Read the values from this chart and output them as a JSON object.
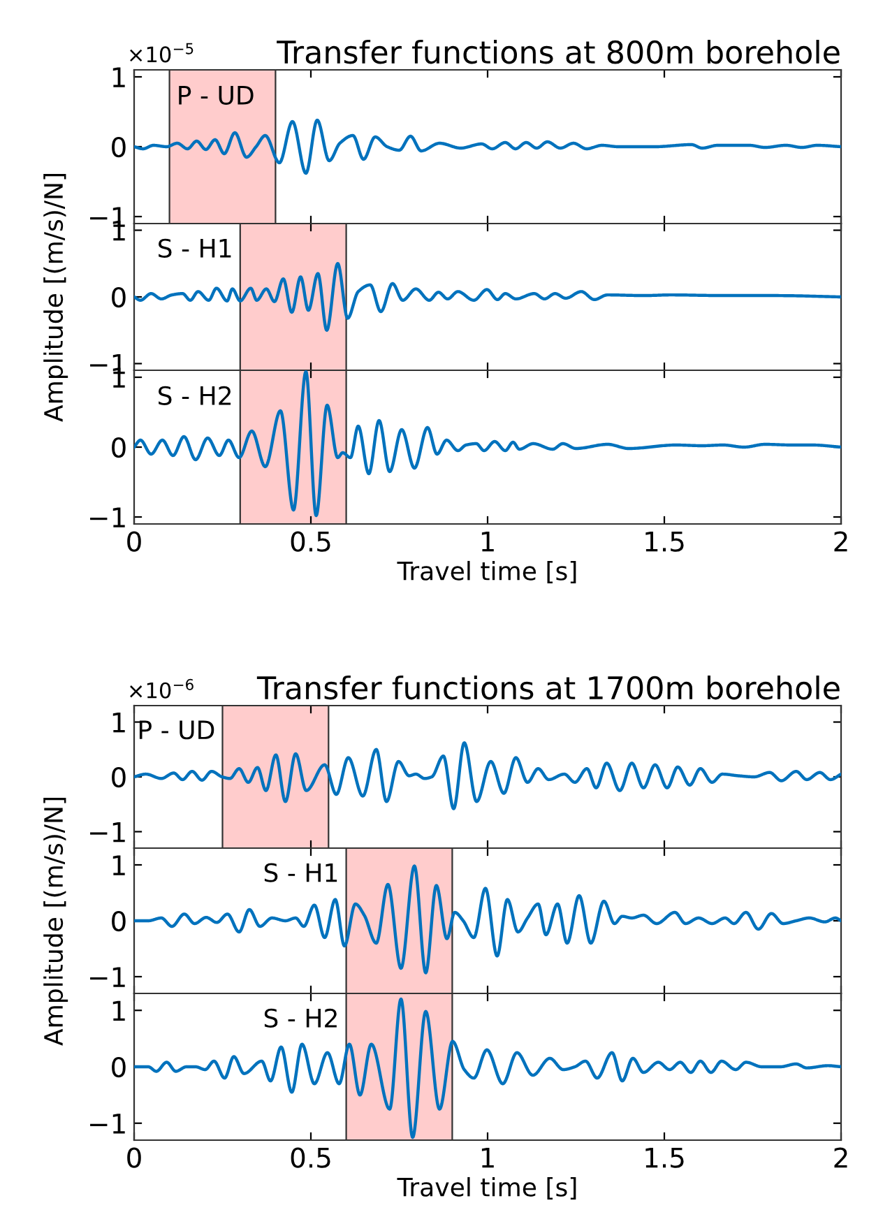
{
  "chart_data": [
    {
      "type": "line",
      "title": "Transfer functions at 800m borehole",
      "annotations": [
        "×10$^{−5}$"
      ],
      "x": [
        0,
        0.025,
        0.055,
        0.092,
        0.122,
        0.151,
        0.177,
        0.203,
        0.229,
        0.255,
        0.285,
        0.318,
        0.345,
        0.371,
        0.411,
        0.448,
        0.486,
        0.518,
        0.552,
        0.582,
        0.619,
        0.649,
        0.682,
        0.716,
        0.75,
        0.782,
        0.812,
        0.864,
        0.924,
        0.983,
        1.013,
        1.05,
        1.079,
        1.109,
        1.139,
        1.169,
        1.206,
        1.243,
        1.28,
        1.324,
        1.369,
        1.473,
        1.577,
        1.607,
        1.651,
        1.74,
        1.785,
        1.844,
        1.889,
        1.933,
        2.0
      ],
      "series": [
        {
          "color": "#0072bd",
          "values": [
            0,
            -0.03,
            0.02,
            0,
            0.05,
            -0.03,
            0.08,
            -0.04,
            0.1,
            -0.1,
            0.2,
            -0.15,
            0,
            0.16,
            -0.23,
            0.36,
            -0.38,
            0.38,
            -0.2,
            0.05,
            0.16,
            -0.18,
            0.14,
            0,
            -0.05,
            0.15,
            -0.06,
            0.05,
            -0.02,
            0.04,
            -0.03,
            0.06,
            -0.03,
            0.06,
            -0.02,
            0.07,
            -0.02,
            0.05,
            -0.03,
            0.02,
            0,
            0,
            0.03,
            -0.02,
            0.02,
            0.02,
            -0.01,
            0.02,
            -0.01,
            0.02,
            0
          ]
        }
      ],
      "xlim": [
        0,
        2
      ],
      "xticks": [
        0,
        0.5,
        1,
        1.5,
        2
      ],
      "ylim": [
        -1.1,
        1.1
      ],
      "yticks": [
        -1,
        0,
        1
      ],
      "tick_labels": "y",
      "grid": false,
      "legend": false,
      "bands": [
        {
          "axis": "x",
          "from": 0.1,
          "to": 0.4,
          "label": "P - UD",
          "color": "#ffcccc"
        }
      ]
    },
    {
      "type": "line",
      "ylabel": "Amplitude [(m/s)/N]",
      "x": [
        0,
        0.018,
        0.048,
        0.077,
        0.107,
        0.137,
        0.159,
        0.181,
        0.211,
        0.233,
        0.263,
        0.278,
        0.3,
        0.33,
        0.347,
        0.374,
        0.397,
        0.422,
        0.446,
        0.471,
        0.493,
        0.52,
        0.545,
        0.576,
        0.604,
        0.634,
        0.668,
        0.698,
        0.731,
        0.76,
        0.797,
        0.835,
        0.861,
        0.887,
        0.916,
        0.961,
        0.998,
        1.028,
        1.05,
        1.08,
        1.132,
        1.161,
        1.191,
        1.221,
        1.265,
        1.302,
        1.339,
        1.443,
        1.518,
        1.666,
        1.815,
        2.0
      ],
      "series": [
        {
          "color": "#0072bd",
          "values": [
            0,
            -0.05,
            0.05,
            -0.03,
            0.03,
            0.05,
            -0.05,
            0.08,
            -0.05,
            0.13,
            -0.06,
            0.12,
            -0.06,
            0.13,
            -0.05,
            0.12,
            -0.07,
            0.27,
            -0.23,
            0.3,
            -0.2,
            0.35,
            -0.5,
            0.5,
            -0.32,
            0.08,
            0.18,
            -0.22,
            0.2,
            -0.05,
            0.12,
            -0.05,
            0.07,
            -0.03,
            0.08,
            -0.05,
            0.11,
            -0.04,
            0.05,
            -0.03,
            0.05,
            -0.03,
            0.05,
            -0.02,
            0.08,
            -0.04,
            0.03,
            0.02,
            0.03,
            0.02,
            0.02,
            0
          ]
        }
      ],
      "xlim": [
        0,
        2
      ],
      "xticks": [
        0,
        0.5,
        1,
        1.5,
        2
      ],
      "ylim": [
        -1.1,
        1.1
      ],
      "yticks": [
        -1,
        0,
        1
      ],
      "tick_labels": "y",
      "grid": false,
      "legend": false,
      "bands": [
        {
          "axis": "x",
          "from": 0.3,
          "to": 0.6,
          "label": "S - H1",
          "color": "#ffcccc"
        }
      ]
    },
    {
      "type": "line",
      "xlabel": "Travel time [s]",
      "x": [
        0,
        0.018,
        0.048,
        0.08,
        0.11,
        0.141,
        0.174,
        0.208,
        0.241,
        0.267,
        0.297,
        0.333,
        0.371,
        0.414,
        0.451,
        0.486,
        0.515,
        0.546,
        0.576,
        0.59,
        0.612,
        0.634,
        0.664,
        0.693,
        0.723,
        0.757,
        0.793,
        0.83,
        0.857,
        0.884,
        0.916,
        0.939,
        0.968,
        0.99,
        1.02,
        1.05,
        1.072,
        1.09,
        1.129,
        1.184,
        1.213,
        1.25,
        1.34,
        1.399,
        1.533,
        1.607,
        1.666,
        1.726,
        1.785,
        1.859,
        1.919,
        2.0
      ],
      "series": [
        {
          "color": "#0072bd",
          "values": [
            0,
            0.1,
            -0.1,
            0.1,
            -0.12,
            0.15,
            -0.18,
            0.13,
            -0.12,
            0.1,
            -0.15,
            0.23,
            -0.28,
            0.52,
            -0.9,
            1.08,
            -0.98,
            0.6,
            -0.15,
            -0.08,
            -0.15,
            0.3,
            -0.38,
            0.38,
            -0.35,
            0.25,
            -0.3,
            0.28,
            -0.1,
            0.1,
            -0.05,
            0.03,
            0.05,
            -0.05,
            0.08,
            -0.05,
            0.07,
            -0.03,
            0.05,
            -0.03,
            0.05,
            -0.02,
            0.04,
            -0.02,
            0.03,
            0.02,
            0.03,
            0,
            0.04,
            0.03,
            0.03,
            0
          ]
        }
      ],
      "xlim": [
        0,
        2
      ],
      "xticks": [
        0,
        0.5,
        1,
        1.5,
        2
      ],
      "ylim": [
        -1.1,
        1.1
      ],
      "yticks": [
        -1,
        0,
        1
      ],
      "grid": false,
      "legend": false,
      "bands": [
        {
          "axis": "x",
          "from": 0.3,
          "to": 0.6,
          "label": "S - H2",
          "color": "#ffcccc"
        }
      ]
    },
    {
      "type": "line",
      "title": "Transfer functions at 1700m borehole",
      "annotations": [
        "×10$^{−6}$"
      ],
      "x": [
        0,
        0.033,
        0.077,
        0.112,
        0.137,
        0.164,
        0.192,
        0.219,
        0.249,
        0.271,
        0.297,
        0.323,
        0.349,
        0.373,
        0.401,
        0.428,
        0.457,
        0.487,
        0.539,
        0.572,
        0.606,
        0.647,
        0.685,
        0.714,
        0.748,
        0.778,
        0.797,
        0.822,
        0.842,
        0.875,
        0.904,
        0.934,
        0.969,
        1.009,
        1.046,
        1.08,
        1.113,
        1.143,
        1.173,
        1.217,
        1.247,
        1.281,
        1.307,
        1.337,
        1.374,
        1.408,
        1.441,
        1.474,
        1.508,
        1.538,
        1.572,
        1.602,
        1.635,
        1.664,
        1.709,
        1.754,
        1.798,
        1.831,
        1.873,
        1.903,
        1.94,
        1.97,
        2.0
      ],
      "series": [
        {
          "color": "#0072bd",
          "values": [
            0,
            0.05,
            -0.03,
            0.07,
            -0.05,
            0.1,
            -0.06,
            0.1,
            0,
            -0.03,
            0.15,
            -0.1,
            0.17,
            -0.25,
            0.4,
            -0.45,
            0.42,
            -0.25,
            0.22,
            -0.32,
            0.35,
            -0.35,
            0.5,
            -0.45,
            0.28,
            0.02,
            0.05,
            -0.03,
            0,
            0.38,
            -0.58,
            0.62,
            -0.45,
            0.28,
            -0.3,
            0.35,
            -0.1,
            0.15,
            -0.05,
            0.05,
            -0.1,
            0.15,
            -0.2,
            0.25,
            -0.25,
            0.25,
            -0.2,
            0.22,
            -0.2,
            0.18,
            -0.15,
            0.15,
            -0.1,
            0.05,
            0.02,
            0,
            0.08,
            -0.07,
            0.1,
            -0.05,
            0.08,
            -0.05,
            0.05
          ]
        }
      ],
      "xlim": [
        0,
        2
      ],
      "xticks": [
        0,
        0.5,
        1,
        1.5,
        2
      ],
      "ylim": [
        -1.3,
        1.3
      ],
      "yticks": [
        -1,
        0,
        1
      ],
      "tick_labels": "y",
      "grid": false,
      "legend": false,
      "bands": [
        {
          "axis": "x",
          "from": 0.25,
          "to": 0.55,
          "label": "P - UD",
          "color": "#ffcccc"
        }
      ]
    },
    {
      "type": "line",
      "ylabel": "Amplitude [(m/s)/N]",
      "x": [
        0,
        0.04,
        0.077,
        0.107,
        0.142,
        0.171,
        0.204,
        0.234,
        0.264,
        0.297,
        0.326,
        0.356,
        0.39,
        0.428,
        0.457,
        0.48,
        0.51,
        0.539,
        0.569,
        0.595,
        0.626,
        0.651,
        0.685,
        0.718,
        0.755,
        0.793,
        0.825,
        0.855,
        0.885,
        0.907,
        0.931,
        0.961,
        0.994,
        1.027,
        1.056,
        1.086,
        1.113,
        1.143,
        1.165,
        1.198,
        1.225,
        1.259,
        1.292,
        1.329,
        1.359,
        1.381,
        1.408,
        1.441,
        1.478,
        1.53,
        1.56,
        1.597,
        1.635,
        1.672,
        1.697,
        1.731,
        1.766,
        1.803,
        1.836,
        1.873,
        1.91,
        1.954,
        1.984,
        2.0
      ],
      "series": [
        {
          "color": "#0072bd",
          "values": [
            0,
            0,
            0.05,
            -0.1,
            0.12,
            -0.05,
            0.06,
            -0.03,
            0.12,
            -0.2,
            0.2,
            -0.1,
            0.05,
            0,
            0.05,
            -0.1,
            0.28,
            -0.3,
            0.38,
            -0.45,
            0.3,
            0.1,
            -0.4,
            0.65,
            -0.85,
            0.98,
            -0.93,
            0.63,
            -0.32,
            0.15,
            0,
            -0.3,
            0.58,
            -0.63,
            0.38,
            -0.2,
            0.05,
            0.3,
            -0.25,
            0.3,
            -0.4,
            0.45,
            -0.4,
            0.35,
            -0.05,
            0.08,
            0.05,
            0.1,
            -0.05,
            0.15,
            -0.05,
            0.05,
            -0.05,
            0.05,
            -0.05,
            0.15,
            -0.15,
            0.13,
            -0.05,
            0,
            0.05,
            -0.02,
            0.05,
            0
          ]
        }
      ],
      "xlim": [
        0,
        2
      ],
      "xticks": [
        0,
        0.5,
        1,
        1.5,
        2
      ],
      "ylim": [
        -1.3,
        1.3
      ],
      "yticks": [
        -1,
        0,
        1
      ],
      "tick_labels": "y",
      "grid": false,
      "legend": false,
      "bands": [
        {
          "axis": "x",
          "from": 0.6,
          "to": 0.9,
          "label": "S - H1",
          "color": "#ffcccc"
        }
      ]
    },
    {
      "type": "line",
      "xlabel": "Travel time [s]",
      "x": [
        0,
        0.04,
        0.063,
        0.092,
        0.118,
        0.148,
        0.174,
        0.201,
        0.226,
        0.256,
        0.282,
        0.311,
        0.361,
        0.386,
        0.416,
        0.446,
        0.475,
        0.51,
        0.547,
        0.58,
        0.609,
        0.639,
        0.671,
        0.723,
        0.755,
        0.788,
        0.825,
        0.864,
        0.901,
        0.934,
        0.961,
        0.998,
        1.043,
        1.083,
        1.128,
        1.176,
        1.214,
        1.247,
        1.277,
        1.31,
        1.352,
        1.381,
        1.411,
        1.441,
        1.483,
        1.515,
        1.545,
        1.575,
        1.602,
        1.632,
        1.662,
        1.702,
        1.731,
        1.776,
        1.828,
        1.873,
        1.903,
        1.963,
        2.0
      ],
      "series": [
        {
          "color": "#0072bd",
          "values": [
            0,
            0,
            -0.08,
            0.08,
            -0.08,
            0,
            0,
            -0.05,
            0.1,
            -0.2,
            0.18,
            -0.12,
            0.1,
            -0.25,
            0.35,
            -0.45,
            0.4,
            -0.3,
            0.25,
            -0.3,
            0.4,
            -0.5,
            0.4,
            -0.75,
            1.2,
            -1.25,
            0.98,
            -0.75,
            0.45,
            -0.05,
            -0.2,
            0.3,
            -0.3,
            0.25,
            -0.15,
            0.15,
            -0.05,
            0,
            0.1,
            -0.2,
            0.25,
            -0.25,
            0.15,
            -0.1,
            0.08,
            -0.05,
            0.08,
            -0.1,
            0.1,
            -0.1,
            0.1,
            -0.05,
            0.08,
            0,
            0,
            0.05,
            -0.02,
            0.02,
            0
          ]
        }
      ],
      "xlim": [
        0,
        2
      ],
      "xticks": [
        0,
        0.5,
        1,
        1.5,
        2
      ],
      "ylim": [
        -1.3,
        1.3
      ],
      "yticks": [
        -1,
        0,
        1
      ],
      "grid": false,
      "legend": false,
      "bands": [
        {
          "axis": "x",
          "from": 0.6,
          "to": 0.9,
          "label": "S - H2",
          "color": "#ffcccc"
        }
      ]
    }
  ]
}
